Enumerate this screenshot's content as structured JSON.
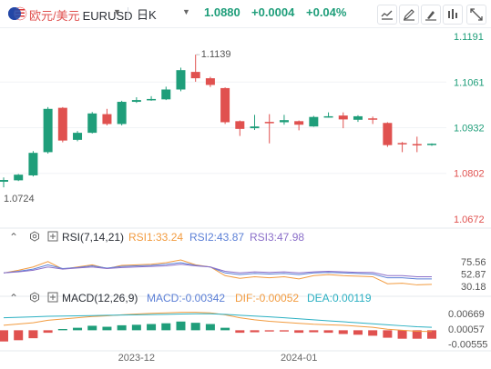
{
  "header": {
    "pair_cn": "欧元/美元",
    "code": "EURUSD",
    "period": "日K",
    "price": "1.0880",
    "change": "+0.0004",
    "change_pct": "+0.04%"
  },
  "toolbar_icons": [
    "line-chart-icon",
    "drawing-icon",
    "draw-tool-icon",
    "indicator-icon",
    "expand-icon"
  ],
  "colors": {
    "up": "#1f9e7a",
    "down": "#e0514f",
    "rsi1": "#f29b3f",
    "rsi2": "#5b7fd6",
    "rsi3": "#8b6fc9",
    "dif": "#f29b3f",
    "dea": "#2bb0c2"
  },
  "chart_data": {
    "type": "candlestick",
    "price_axis_ticks": [
      "1.1191",
      "1.1061",
      "1.0932",
      "1.0802",
      "1.0672"
    ],
    "ylim": [
      1.0672,
      1.1191
    ],
    "high_label": "1.1139",
    "low_label": "1.0724",
    "x_labels": [
      "2023-12",
      "2024-01"
    ],
    "candles": [
      {
        "o": 1.0778,
        "h": 1.079,
        "l": 1.0762,
        "c": 1.0783
      },
      {
        "o": 1.0782,
        "h": 1.08,
        "l": 1.078,
        "c": 1.0798
      },
      {
        "o": 1.0796,
        "h": 1.0865,
        "l": 1.0793,
        "c": 1.086
      },
      {
        "o": 1.0862,
        "h": 1.099,
        "l": 1.0858,
        "c": 1.0985
      },
      {
        "o": 1.0988,
        "h": 1.099,
        "l": 1.089,
        "c": 1.0895
      },
      {
        "o": 1.0897,
        "h": 1.0922,
        "l": 1.0893,
        "c": 1.0917
      },
      {
        "o": 1.0917,
        "h": 1.0976,
        "l": 1.0915,
        "c": 1.0972
      },
      {
        "o": 1.097,
        "h": 1.0985,
        "l": 1.0938,
        "c": 1.0942
      },
      {
        "o": 1.0942,
        "h": 1.1008,
        "l": 1.0938,
        "c": 1.1005
      },
      {
        "o": 1.1005,
        "h": 1.1018,
        "l": 1.1002,
        "c": 1.101
      },
      {
        "o": 1.1012,
        "h": 1.1021,
        "l": 1.1008,
        "c": 1.1013
      },
      {
        "o": 1.1012,
        "h": 1.1048,
        "l": 1.101,
        "c": 1.104
      },
      {
        "o": 1.104,
        "h": 1.1102,
        "l": 1.1035,
        "c": 1.1095
      },
      {
        "o": 1.109,
        "h": 1.1139,
        "l": 1.1062,
        "c": 1.1072
      },
      {
        "o": 1.1072,
        "h": 1.1076,
        "l": 1.1047,
        "c": 1.1053
      },
      {
        "o": 1.1044,
        "h": 1.1046,
        "l": 1.0942,
        "c": 1.0947
      },
      {
        "o": 1.095,
        "h": 1.0952,
        "l": 1.0908,
        "c": 1.0928
      },
      {
        "o": 1.093,
        "h": 1.0968,
        "l": 1.0925,
        "c": 1.0935
      },
      {
        "o": 1.0948,
        "h": 1.097,
        "l": 1.0887,
        "c": 1.0945
      },
      {
        "o": 1.0947,
        "h": 1.0968,
        "l": 1.094,
        "c": 1.0953
      },
      {
        "o": 1.095,
        "h": 1.0952,
        "l": 1.0924,
        "c": 1.094
      },
      {
        "o": 1.0935,
        "h": 1.0965,
        "l": 1.0934,
        "c": 1.0962
      },
      {
        "o": 1.0963,
        "h": 1.0975,
        "l": 1.096,
        "c": 1.0964
      },
      {
        "o": 1.0966,
        "h": 1.0975,
        "l": 1.093,
        "c": 1.0955
      },
      {
        "o": 1.0954,
        "h": 1.0967,
        "l": 1.0948,
        "c": 1.0964
      },
      {
        "o": 1.0958,
        "h": 1.0963,
        "l": 1.0942,
        "c": 1.0955
      },
      {
        "o": 1.0945,
        "h": 1.0947,
        "l": 1.0877,
        "c": 1.0882
      },
      {
        "o": 1.0888,
        "h": 1.0891,
        "l": 1.0862,
        "c": 1.0887
      },
      {
        "o": 1.0885,
        "h": 1.0906,
        "l": 1.0862,
        "c": 1.0882
      },
      {
        "o": 1.0883,
        "h": 1.0887,
        "l": 1.088,
        "c": 1.0886
      }
    ],
    "rsi": {
      "label": "RSI(7,14,21)",
      "values_label": [
        "RSI1:33.24",
        "RSI2:43.87",
        "RSI3:47.98"
      ],
      "axis_ticks": [
        "75.56",
        "52.87",
        "30.18"
      ],
      "ylim": [
        22,
        84
      ],
      "rsi1": [
        55,
        60,
        66,
        76,
        62,
        66,
        70,
        63,
        69,
        70,
        71,
        74,
        79,
        70,
        66,
        50,
        45,
        48,
        46,
        48,
        44,
        50,
        52,
        50,
        49,
        48,
        35,
        36,
        33,
        34
      ],
      "rsi2": [
        55,
        58,
        62,
        70,
        63,
        65,
        68,
        64,
        67,
        68,
        69,
        71,
        74,
        69,
        66,
        55,
        52,
        54,
        53,
        54,
        52,
        55,
        56,
        55,
        54,
        53,
        46,
        46,
        44,
        44
      ],
      "rsi3": [
        55,
        57,
        60,
        66,
        62,
        64,
        66,
        63,
        65,
        66,
        67,
        68,
        71,
        68,
        66,
        58,
        55,
        57,
        56,
        57,
        55,
        57,
        58,
        57,
        56,
        56,
        50,
        50,
        48,
        48
      ]
    },
    "macd": {
      "label": "MACD(12,26,9)",
      "values_label": [
        "MACD:-0.00342",
        "DIF:-0.00052",
        "DEA:0.00119"
      ],
      "axis_ticks": [
        "0.00669",
        "0.00057",
        "-0.00555"
      ],
      "ylim": [
        -0.0068,
        0.0078
      ],
      "hist": [
        -0.0045,
        -0.004,
        -0.0032,
        -0.001,
        0.0005,
        0.001,
        0.0018,
        0.0014,
        0.002,
        0.0022,
        0.0025,
        0.0028,
        0.0035,
        0.003,
        0.0025,
        0.001,
        -0.001,
        -0.0008,
        -0.0005,
        -0.0005,
        -0.001,
        -0.0008,
        -0.001,
        -0.0015,
        -0.0018,
        -0.0022,
        -0.003,
        -0.0034,
        -0.0034,
        -0.0034
      ],
      "dif": [
        0.002,
        0.0025,
        0.003,
        0.004,
        0.0045,
        0.005,
        0.0055,
        0.0058,
        0.0062,
        0.0065,
        0.0068,
        0.007,
        0.0072,
        0.0072,
        0.007,
        0.0062,
        0.005,
        0.0042,
        0.0036,
        0.0032,
        0.0028,
        0.0024,
        0.0022,
        0.002,
        0.0016,
        0.0012,
        0.0004,
        0.0,
        -0.0004,
        -0.0005
      ],
      "dea": [
        0.005,
        0.0052,
        0.0054,
        0.0056,
        0.0057,
        0.0058,
        0.0059,
        0.006,
        0.0061,
        0.0062,
        0.0063,
        0.0064,
        0.0065,
        0.0066,
        0.0066,
        0.0064,
        0.006,
        0.0057,
        0.0054,
        0.005,
        0.0046,
        0.0042,
        0.0038,
        0.0034,
        0.003,
        0.0026,
        0.0022,
        0.0018,
        0.0014,
        0.0012
      ]
    }
  }
}
